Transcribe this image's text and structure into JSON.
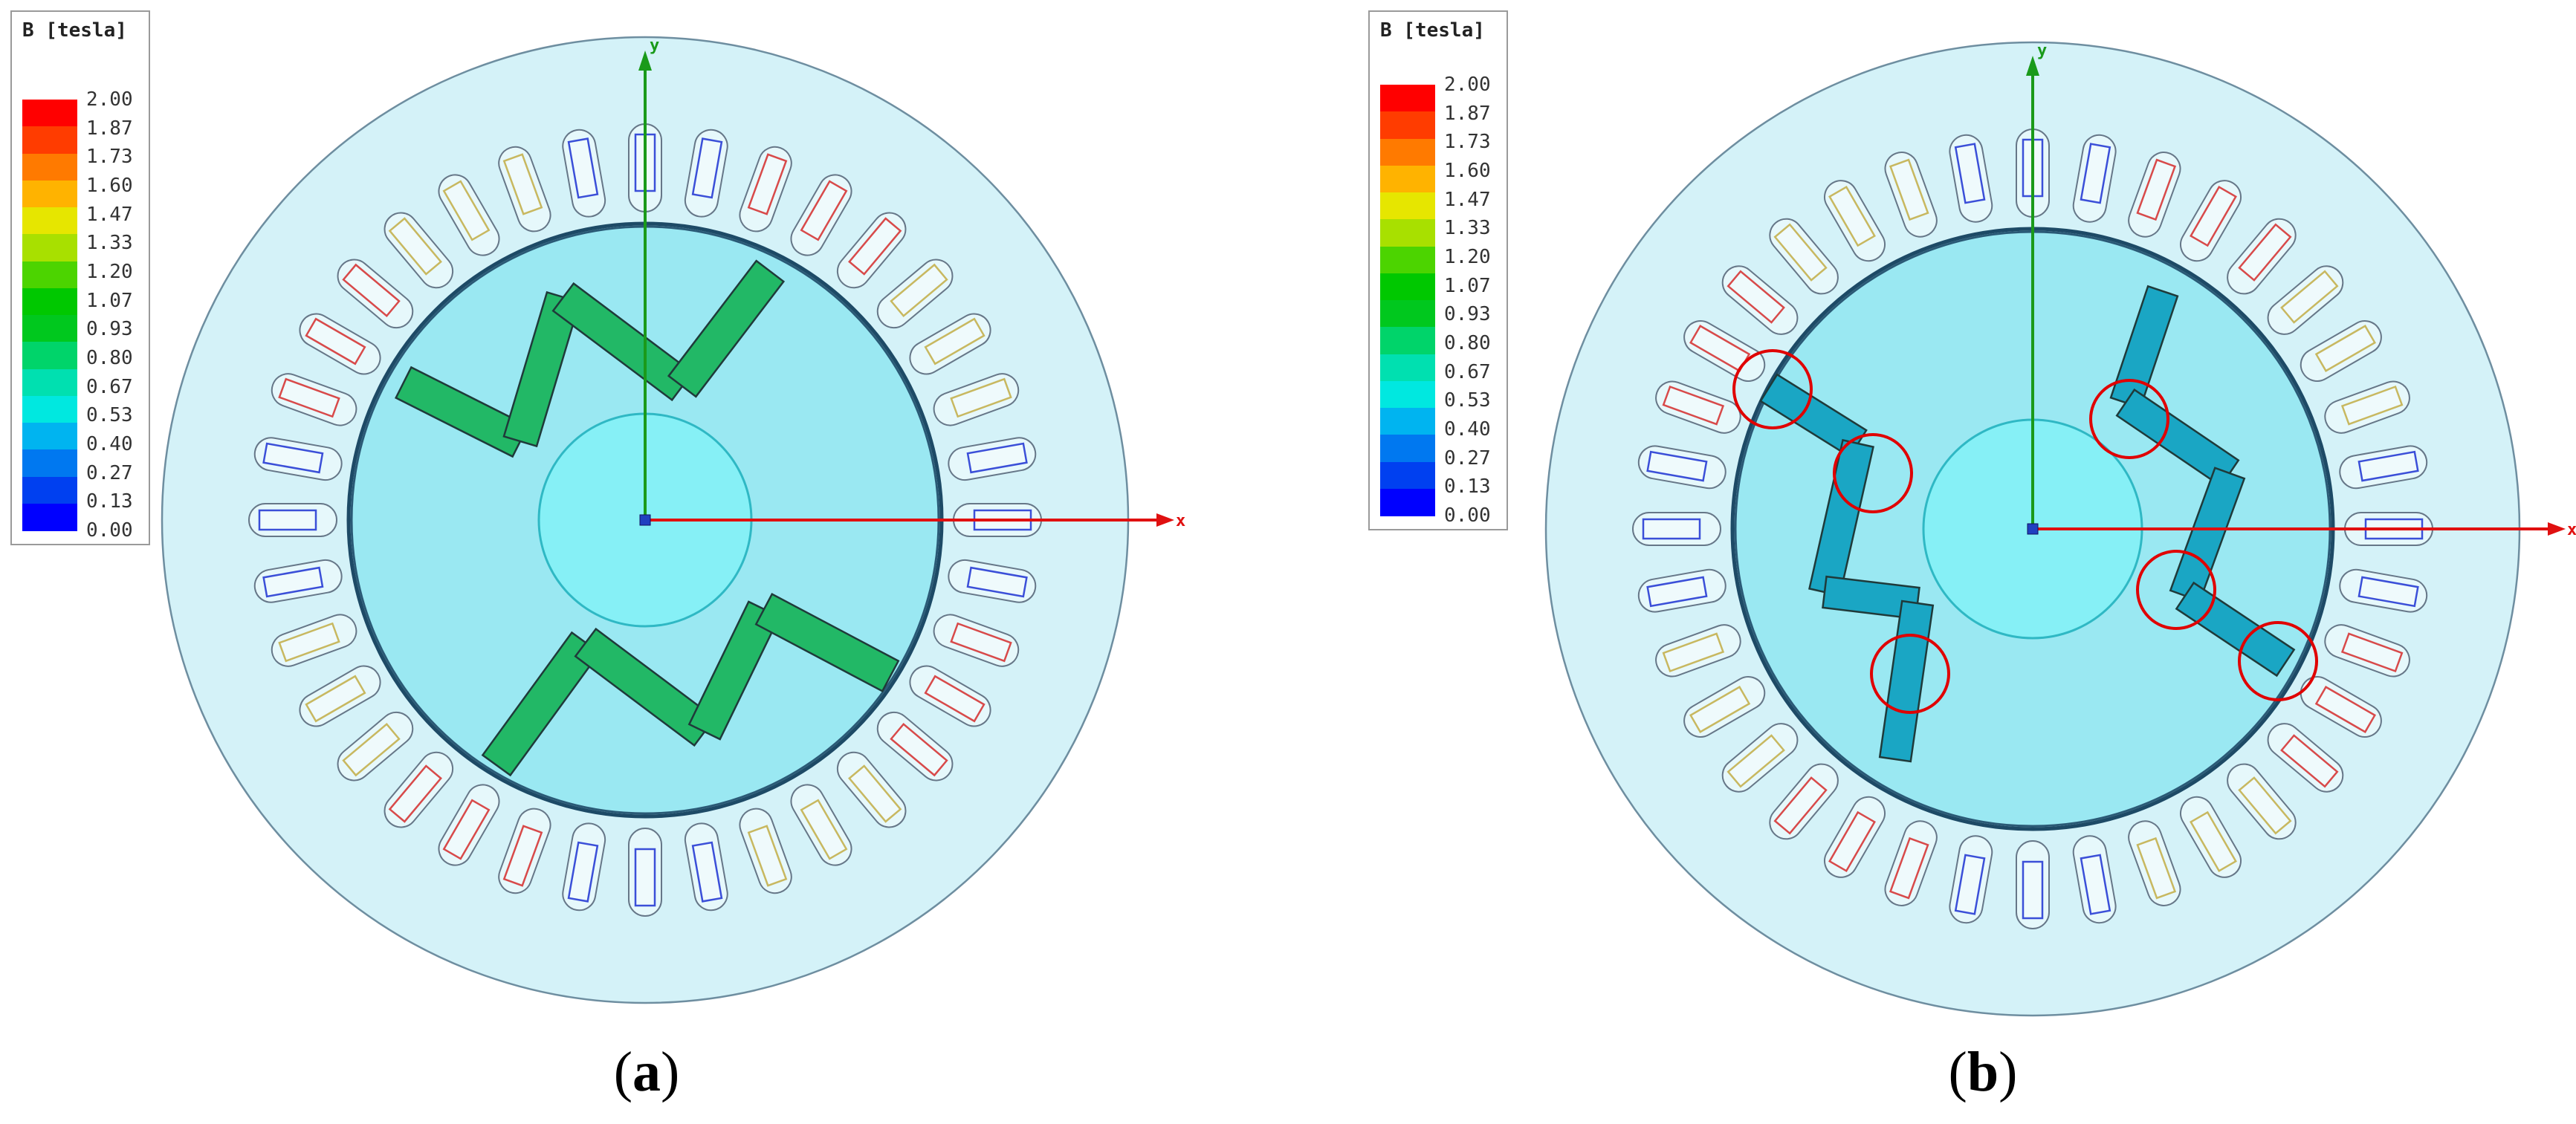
{
  "legend": {
    "title": "B [tesla]",
    "ticks": [
      "2.00",
      "1.87",
      "1.73",
      "1.60",
      "1.47",
      "1.33",
      "1.20",
      "1.07",
      "0.93",
      "0.80",
      "0.67",
      "0.53",
      "0.40",
      "0.27",
      "0.13",
      "0.00"
    ],
    "colors": [
      "#ff0000",
      "#ff3c00",
      "#ff7a00",
      "#ffb300",
      "#e6e600",
      "#a8e000",
      "#4cd400",
      "#00c800",
      "#00c81e",
      "#00d46a",
      "#00e0b0",
      "#00e8e0",
      "#00b4f0",
      "#0078f0",
      "#0040f0",
      "#0000ff"
    ]
  },
  "panels": [
    {
      "id": "a",
      "caption_open": "(",
      "caption_letter": "a",
      "caption_close": ")",
      "magnet_color": "#22b866",
      "axis_y": "y",
      "axis_x": "x"
    },
    {
      "id": "b",
      "caption_open": "(",
      "caption_letter": "b",
      "caption_close": ")",
      "magnet_color": "#1aa6c4",
      "axis_y": "y",
      "axis_x": "x"
    }
  ],
  "colors": {
    "stator": "#d4f2f8",
    "rotor": "#9ae8f2",
    "shaft": "#86f0f6",
    "coil_blue": "#3b4fd8",
    "coil_red": "#d84a4a",
    "coil_yellow": "#c8b860",
    "axis_y": "#1a9a1a",
    "axis_x": "#e01010",
    "highlight": "#e00000"
  }
}
